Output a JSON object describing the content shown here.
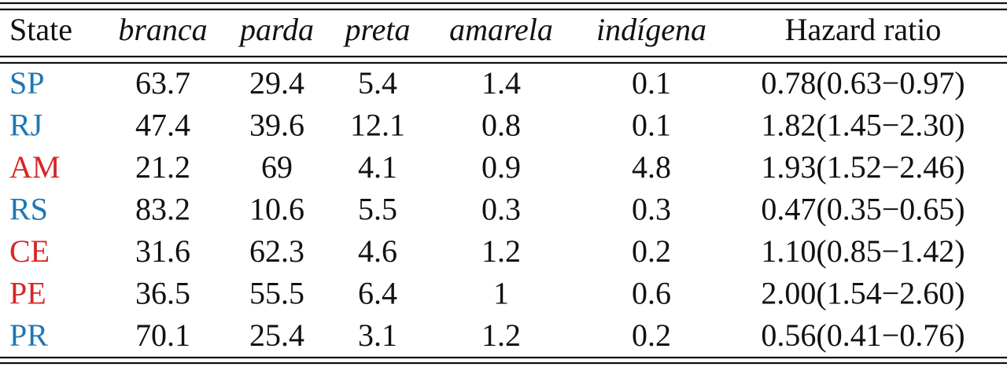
{
  "table": {
    "header": [
      "State",
      "branca",
      "parda",
      "preta",
      "amarela",
      "indígena",
      "Hazard ratio"
    ],
    "rows": [
      {
        "state": "SP",
        "color": "#1f77b4",
        "values": [
          63.7,
          29.4,
          5.4,
          1.4,
          0.1
        ],
        "hazard_ratio": "0.78(0.63−0.97)"
      },
      {
        "state": "RJ",
        "color": "#1f77b4",
        "values": [
          47.4,
          39.6,
          12.1,
          0.8,
          0.1
        ],
        "hazard_ratio": "1.82(1.45−2.30)"
      },
      {
        "state": "AM",
        "color": "#d62728",
        "values": [
          21.2,
          69,
          4.1,
          0.9,
          4.8
        ],
        "hazard_ratio": "1.93(1.52−2.46)"
      },
      {
        "state": "RS",
        "color": "#1f77b4",
        "values": [
          83.2,
          10.6,
          5.5,
          0.3,
          0.3
        ],
        "hazard_ratio": "0.47(0.35−0.65)"
      },
      {
        "state": "CE",
        "color": "#d62728",
        "values": [
          31.6,
          62.3,
          4.6,
          1.2,
          0.2
        ],
        "hazard_ratio": "1.10(0.85−1.42)"
      },
      {
        "state": "PE",
        "color": "#d62728",
        "values": [
          36.5,
          55.5,
          6.4,
          1,
          0.6
        ],
        "hazard_ratio": "2.00(1.54−2.60)"
      },
      {
        "state": "PR",
        "color": "#1f77b4",
        "values": [
          70.1,
          25.4,
          3.1,
          1.2,
          0.2
        ],
        "hazard_ratio": "0.56(0.41−0.76)"
      }
    ]
  }
}
